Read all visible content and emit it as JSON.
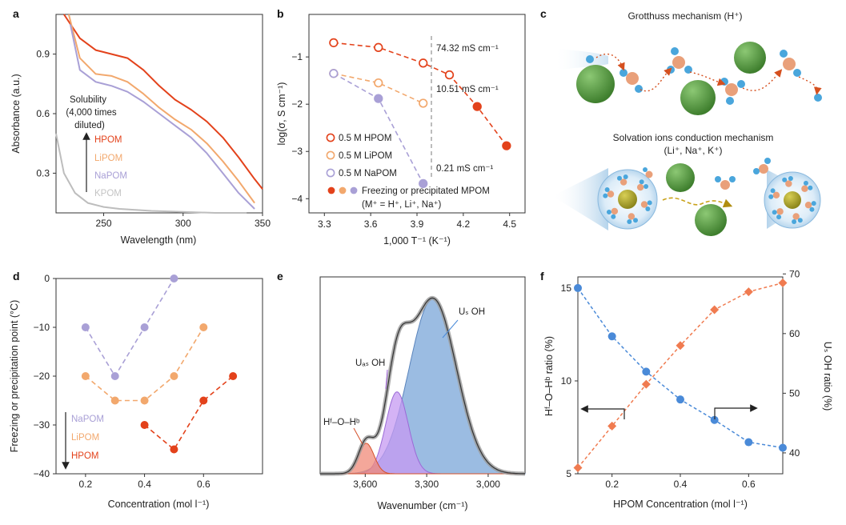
{
  "colors": {
    "HPOM": "#e3421b",
    "LiPOM": "#f2a86d",
    "NaPOM": "#a9a0d6",
    "KPOM": "#bdbdbd",
    "blue": "#4a8ad8",
    "orange_f": "#f07b50",
    "sphere_green": "#5e9e4a",
    "water_o": "#e9a07a",
    "water_h": "#4aa6dc"
  },
  "panel_letters": [
    "a",
    "b",
    "c",
    "d",
    "e",
    "f"
  ],
  "panel_a": {
    "ylabel": "Absorbance (a.u.)",
    "xlabel": "Wavelength (nm)",
    "xticks": [
      "250",
      "300",
      "350"
    ],
    "yticks": [
      "0.3",
      "0.6",
      "0.9"
    ],
    "annotation": [
      "Solubility",
      "(4,000 times",
      "diluted)"
    ],
    "legend": [
      "HPOM",
      "LiPOM",
      "NaPOM",
      "KPOM"
    ]
  },
  "panel_b": {
    "ylabel": "log(σ, S cm⁻¹)",
    "xlabel": "1,000 T⁻¹ (K⁻¹)",
    "xticks": [
      "3.3",
      "3.6",
      "3.9",
      "4.2",
      "4.5"
    ],
    "yticks": [
      "−1",
      "−2",
      "−3",
      "−4"
    ],
    "annotations": [
      "74.32 mS cm⁻¹",
      "10.51 mS cm⁻¹",
      "0.21 mS cm⁻¹"
    ],
    "legend": [
      "0.5 M HPOM",
      "0.5 M LiPOM",
      "0.5 M NaPOM",
      "Freezing or precipitated MPOM",
      "(M⁺ = H⁺, Li⁺, Na⁺)"
    ]
  },
  "panel_c": {
    "title_top": "Grotthuss mechanism (H⁺)",
    "title_bottom_1": "Solvation ions conduction mechanism",
    "title_bottom_2": "(Li⁺, Na⁺, K⁺)"
  },
  "panel_d": {
    "ylabel": "Freezing or precipitation point (°C)",
    "xlabel": "Concentration (mol l⁻¹)",
    "xticks": [
      "0.2",
      "0.4",
      "0.6"
    ],
    "yticks": [
      "0",
      "−10",
      "−20",
      "−30",
      "−40"
    ],
    "legend": [
      "NaPOM",
      "LiPOM",
      "HPOM"
    ]
  },
  "panel_e": {
    "xlabel": "Wavenumber (cm⁻¹)",
    "xticks": [
      "3,600",
      "3,300",
      "3,000"
    ],
    "labels": [
      "Uₛ OH",
      "Uₐₛ OH",
      "Hᶠ–O–Hᵇ"
    ]
  },
  "panel_f": {
    "ylabel_left": "Hᶠ–O–Hᵇ ratio (%)",
    "ylabel_right": "Uₛ OH ratio (%)",
    "xlabel": "HPOM Concentration (mol l⁻¹)",
    "xticks": [
      "0.2",
      "0.4",
      "0.6"
    ],
    "yticks_left": [
      "5",
      "10",
      "15"
    ],
    "yticks_right": [
      "40",
      "50",
      "60",
      "70"
    ]
  },
  "chart_data": [
    {
      "panel": "a",
      "type": "line",
      "xlabel": "Wavelength (nm)",
      "ylabel": "Absorbance (a.u.)",
      "xlim": [
        220,
        350
      ],
      "ylim": [
        0.1,
        1.1
      ],
      "series": [
        {
          "name": "HPOM",
          "x": [
            225,
            235,
            245,
            255,
            265,
            275,
            285,
            295,
            305,
            315,
            325,
            335,
            345,
            350
          ],
          "y": [
            1.1,
            0.98,
            0.92,
            0.9,
            0.88,
            0.82,
            0.74,
            0.67,
            0.62,
            0.56,
            0.48,
            0.38,
            0.27,
            0.22
          ]
        },
        {
          "name": "LiPOM",
          "x": [
            228,
            235,
            245,
            255,
            265,
            275,
            285,
            295,
            305,
            315,
            325,
            335,
            345
          ],
          "y": [
            1.1,
            0.88,
            0.8,
            0.79,
            0.76,
            0.7,
            0.63,
            0.57,
            0.52,
            0.45,
            0.36,
            0.26,
            0.15
          ]
        },
        {
          "name": "NaPOM",
          "x": [
            229,
            235,
            245,
            255,
            265,
            275,
            285,
            295,
            305,
            315,
            325,
            335,
            345
          ],
          "y": [
            1.05,
            0.82,
            0.76,
            0.74,
            0.71,
            0.66,
            0.6,
            0.54,
            0.48,
            0.4,
            0.3,
            0.2,
            0.12
          ]
        },
        {
          "name": "KPOM",
          "x": [
            220,
            225,
            232,
            240,
            250,
            260,
            280,
            300,
            320,
            340
          ],
          "y": [
            0.5,
            0.3,
            0.2,
            0.15,
            0.13,
            0.12,
            0.11,
            0.105,
            0.1,
            0.1
          ]
        }
      ]
    },
    {
      "panel": "b",
      "type": "scatter",
      "xlabel": "1,000 T⁻¹ (K⁻¹)",
      "ylabel": "log(σ, S cm⁻¹)",
      "xlim": [
        3.2,
        4.6
      ],
      "ylim": [
        -4.3,
        -0.1
      ],
      "series": [
        {
          "name": "0.5 M HPOM",
          "x": [
            3.36,
            3.65,
            3.94,
            4.11
          ],
          "y": [
            -0.7,
            -0.8,
            -1.13,
            -1.38
          ]
        },
        {
          "name": "0.5 M LiPOM",
          "x": [
            3.36,
            3.65,
            3.94
          ],
          "y": [
            -1.35,
            -1.55,
            -1.98
          ]
        },
        {
          "name": "0.5 M NaPOM",
          "x": [
            3.36
          ],
          "y": [
            -1.35
          ]
        },
        {
          "name": "Freezing or precipitated MPOM",
          "group": "HPOM",
          "x": [
            4.29,
            4.48
          ],
          "y": [
            -2.05,
            -2.88
          ]
        },
        {
          "name": "Freezing or precipitated MPOM",
          "group": "NaPOM",
          "x": [
            3.65,
            3.94
          ],
          "y": [
            -1.88,
            -3.68
          ]
        }
      ]
    },
    {
      "panel": "d",
      "type": "scatter",
      "xlabel": "Concentration (mol l⁻¹)",
      "ylabel": "Freezing or precipitation point (°C)",
      "xlim": [
        0.1,
        0.8
      ],
      "ylim": [
        -40,
        0
      ],
      "series": [
        {
          "name": "NaPOM",
          "x": [
            0.2,
            0.3,
            0.4,
            0.5
          ],
          "y": [
            -10,
            -20,
            -10,
            0
          ]
        },
        {
          "name": "LiPOM",
          "x": [
            0.2,
            0.3,
            0.4,
            0.5,
            0.6
          ],
          "y": [
            -20,
            -25,
            -25,
            -20,
            -10
          ]
        },
        {
          "name": "HPOM",
          "x": [
            0.4,
            0.5,
            0.6,
            0.7
          ],
          "y": [
            -30,
            -35,
            -25,
            -20
          ]
        }
      ]
    },
    {
      "panel": "e",
      "type": "area",
      "xlabel": "Wavenumber (cm⁻¹)",
      "xlim": [
        3820,
        2820
      ],
      "series": [
        {
          "name": "Uₛ OH",
          "center": 3270,
          "height": 0.92,
          "width": 115
        },
        {
          "name": "Uₐₛ OH",
          "center": 3445,
          "height": 0.43,
          "width": 55
        },
        {
          "name": "Hᶠ–O–Hᵇ",
          "center": 3595,
          "height": 0.16,
          "width": 38
        }
      ]
    },
    {
      "panel": "f",
      "type": "line",
      "xlabel": "HPOM Concentration (mol l⁻¹)",
      "xlim": [
        0.1,
        0.7
      ],
      "series": [
        {
          "name": "Hᶠ–O–Hᵇ ratio (%)",
          "axis": "left",
          "x": [
            0.1,
            0.2,
            0.3,
            0.4,
            0.5,
            0.6,
            0.7
          ],
          "y": [
            15,
            12.4,
            10.5,
            9.0,
            7.9,
            6.7,
            6.4
          ]
        },
        {
          "name": "Uₛ OH ratio (%)",
          "axis": "right",
          "x": [
            0.1,
            0.2,
            0.3,
            0.4,
            0.5,
            0.6,
            0.7
          ],
          "y": [
            37.5,
            44.5,
            51.5,
            58,
            64,
            67,
            68.5
          ]
        }
      ]
    }
  ]
}
